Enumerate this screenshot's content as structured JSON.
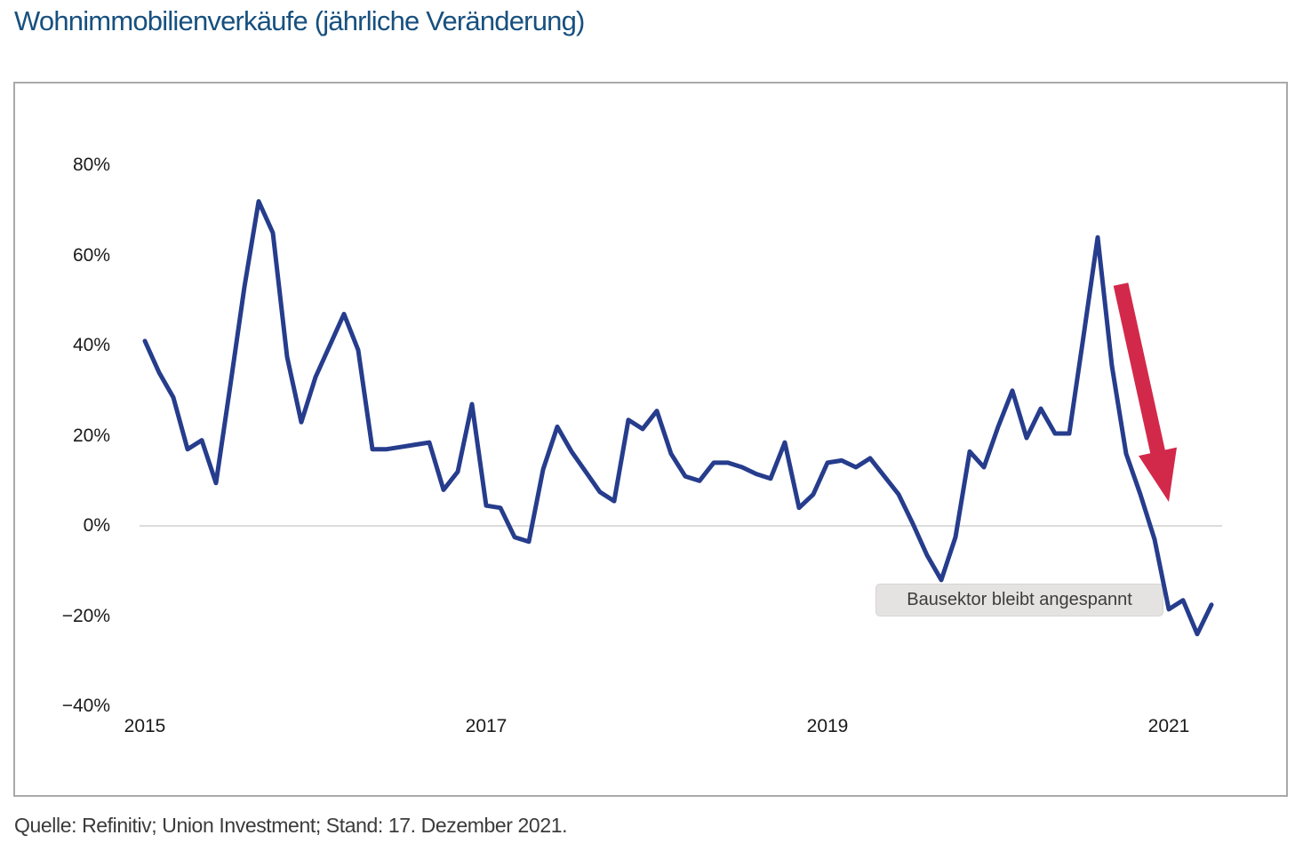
{
  "title": "Wohnimmobilienverkäufe (jährliche Veränderung)",
  "source_note": "Quelle: Refinitiv; Union Investment; Stand: 17. Dezember 2021.",
  "colors": {
    "title": "#17507f",
    "line": "#263c8c",
    "arrow": "#d2294b",
    "grid": "#dcdcdc",
    "box_border": "#a9a9a9",
    "annotation_bg": "#e4e3e1",
    "annotation_text": "#3c3c3c",
    "axis_text": "#1a1a1a",
    "source_text": "#3b3b3b"
  },
  "chart_data": {
    "type": "line",
    "title": "Wohnimmobilienverkäufe (jährliche Veränderung)",
    "unit": "%",
    "frequency": "monthly",
    "x_start": "2015-01",
    "x_end": "2021-04",
    "x_tick_labels": [
      "2015",
      "2017",
      "2019",
      "2021"
    ],
    "x_tick_month_indices": [
      0,
      24,
      48,
      72
    ],
    "y_tick_values": [
      80,
      60,
      40,
      20,
      0,
      -20,
      -40
    ],
    "y_tick_labels": [
      "80%",
      "60%",
      "40%",
      "20%",
      "0%",
      "−20%",
      "−40%"
    ],
    "ylim": [
      -45,
      90
    ],
    "gridlines_at": [
      0
    ],
    "legend": "none",
    "values": [
      41,
      34,
      28.5,
      17,
      19,
      9.5,
      31,
      53,
      72,
      65,
      37.5,
      23,
      33,
      40,
      47,
      39,
      17,
      17,
      17.5,
      18,
      18.5,
      8,
      12,
      27,
      4.5,
      4,
      -2.5,
      -3.5,
      12.5,
      22,
      16.5,
      12,
      7.5,
      5.5,
      23.5,
      21.5,
      25.5,
      16,
      11,
      10,
      14,
      14,
      13,
      11.5,
      10.5,
      18.5,
      4,
      7,
      14,
      14.5,
      13,
      15,
      11,
      7,
      0.5,
      -6.5,
      -12,
      -2.5,
      16.5,
      13,
      22,
      30,
      19.5,
      26,
      20.5,
      20.5,
      42,
      64,
      35.5,
      16,
      7,
      -3,
      -18.5,
      -16.5,
      -24,
      -17.5
    ],
    "annotation": {
      "text": "Bausektor bleibt angespannt",
      "arrow": {
        "from": [
          1244,
          226
        ],
        "to": [
          1298,
          471
        ]
      }
    }
  }
}
